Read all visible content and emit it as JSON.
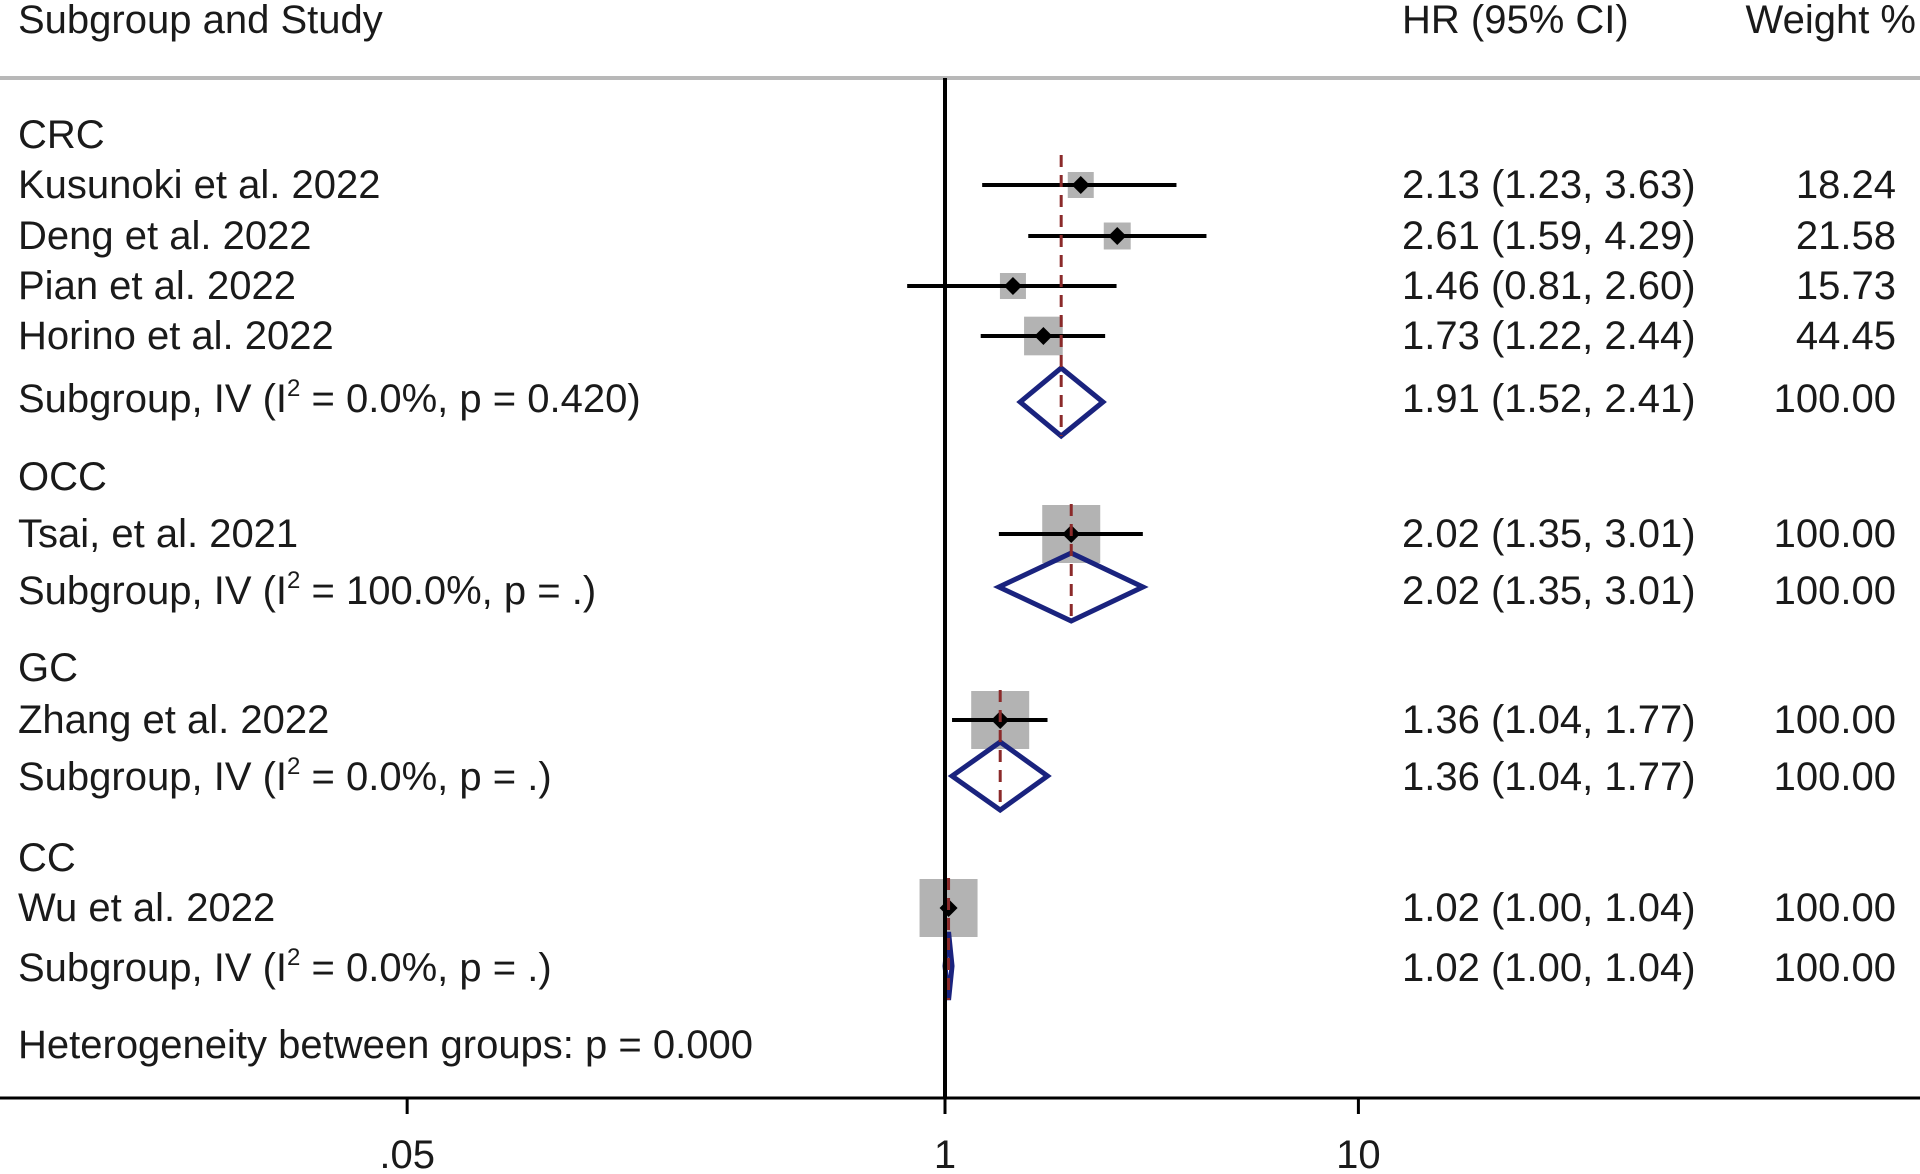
{
  "chart_data": {
    "type": "forest",
    "header": {
      "study": "Subgroup and Study",
      "effect": "HR (95% CI)",
      "weight": "Weight %"
    },
    "x_scale": "log",
    "x_ticks": [
      {
        "value": 0.05,
        "label": ".05"
      },
      {
        "value": 1,
        "label": "1"
      },
      {
        "value": 10,
        "label": "10"
      }
    ],
    "null_value": 1,
    "colors": {
      "text": "#1a1a1a",
      "ci_line": "#000000",
      "weight_box": "#b3b3b3",
      "diamond": "#1a237e",
      "pooled_dash": "#8b2a2a",
      "rule": "#b8b8b8"
    },
    "groups": [
      {
        "name": "CRC",
        "studies": [
          {
            "label": "Kusunoki et al. 2022",
            "hr": 2.13,
            "lo": 1.23,
            "hi": 3.63,
            "weight": 18.24,
            "ci_text": "2.13 (1.23, 3.63)",
            "weight_text": "18.24"
          },
          {
            "label": "Deng et al. 2022",
            "hr": 2.61,
            "lo": 1.59,
            "hi": 4.29,
            "weight": 21.58,
            "ci_text": "2.61 (1.59, 4.29)",
            "weight_text": "21.58"
          },
          {
            "label": "Pian et al. 2022",
            "hr": 1.46,
            "lo": 0.81,
            "hi": 2.6,
            "weight": 15.73,
            "ci_text": "1.46 (0.81, 2.60)",
            "weight_text": "15.73"
          },
          {
            "label": "Horino et al. 2022",
            "hr": 1.73,
            "lo": 1.22,
            "hi": 2.44,
            "weight": 44.45,
            "ci_text": "1.73 (1.22, 2.44)",
            "weight_text": "44.45"
          }
        ],
        "subgroup": {
          "label_pre": "Subgroup, IV (I",
          "label_sup": "2",
          "label_post": " = 0.0%, p = 0.420)",
          "hr": 1.91,
          "lo": 1.52,
          "hi": 2.41,
          "ci_text": "1.91 (1.52, 2.41)",
          "weight_text": "100.00"
        }
      },
      {
        "name": "OCC",
        "studies": [
          {
            "label": "Tsai, et al. 2021",
            "hr": 2.02,
            "lo": 1.35,
            "hi": 3.01,
            "weight": 100.0,
            "ci_text": "2.02 (1.35, 3.01)",
            "weight_text": "100.00"
          }
        ],
        "subgroup": {
          "label_pre": "Subgroup, IV (I",
          "label_sup": "2",
          "label_post": " = 100.0%, p = .)",
          "hr": 2.02,
          "lo": 1.35,
          "hi": 3.01,
          "ci_text": "2.02 (1.35, 3.01)",
          "weight_text": "100.00"
        }
      },
      {
        "name": "GC",
        "studies": [
          {
            "label": "Zhang et al. 2022",
            "hr": 1.36,
            "lo": 1.04,
            "hi": 1.77,
            "weight": 100.0,
            "ci_text": "1.36 (1.04, 1.77)",
            "weight_text": "100.00"
          }
        ],
        "subgroup": {
          "label_pre": "Subgroup, IV (I",
          "label_sup": "2",
          "label_post": " = 0.0%, p = .)",
          "hr": 1.36,
          "lo": 1.04,
          "hi": 1.77,
          "ci_text": "1.36 (1.04, 1.77)",
          "weight_text": "100.00"
        }
      },
      {
        "name": "CC",
        "studies": [
          {
            "label": "Wu et al. 2022",
            "hr": 1.02,
            "lo": 1.0,
            "hi": 1.04,
            "weight": 100.0,
            "ci_text": "1.02 (1.00, 1.04)",
            "weight_text": "100.00"
          }
        ],
        "subgroup": {
          "label_pre": "Subgroup, IV (I",
          "label_sup": "2",
          "label_post": " = 0.0%, p = .)",
          "hr": 1.02,
          "lo": 1.0,
          "hi": 1.04,
          "ci_text": "1.02 (1.00, 1.04)",
          "weight_text": "100.00"
        }
      }
    ],
    "footer": "Heterogeneity between groups: p = 0.000"
  }
}
